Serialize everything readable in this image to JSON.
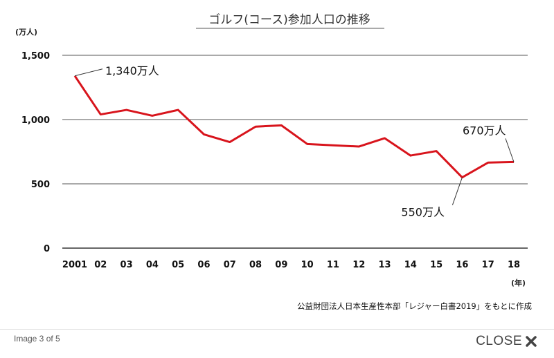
{
  "chart_data": {
    "type": "line",
    "title": "ゴルフ(コース)参加人口の推移",
    "ylabel": "(万人)",
    "xlabel": "(年)",
    "ylim": [
      0,
      1500
    ],
    "yticks": [
      0,
      500,
      1000,
      1500
    ],
    "ytick_labels": [
      "0",
      "500",
      "1,000",
      "1,500"
    ],
    "categories": [
      "2001",
      "02",
      "03",
      "04",
      "05",
      "06",
      "07",
      "08",
      "09",
      "10",
      "11",
      "12",
      "13",
      "14",
      "15",
      "16",
      "17",
      "18"
    ],
    "series": [
      {
        "values": [
          1340,
          1040,
          1075,
          1030,
          1075,
          885,
          825,
          945,
          955,
          810,
          800,
          790,
          855,
          720,
          755,
          550,
          665,
          670
        ],
        "color": "#d8141c"
      }
    ],
    "annotations": [
      {
        "text": "1,340万人",
        "category": "2001",
        "value": 1340
      },
      {
        "text": "550万人",
        "category": "16",
        "value": 550
      },
      {
        "text": "670万人",
        "category": "18",
        "value": 670
      }
    ],
    "grid": "horizontal",
    "legend": "none",
    "source": "公益財団法人日本生産性本部「レジャー白書2019」をもとに作成"
  },
  "footer": {
    "counter": "Image 3 of 5",
    "close_label": "CLOSE",
    "close_icon": "close-x-icon"
  }
}
